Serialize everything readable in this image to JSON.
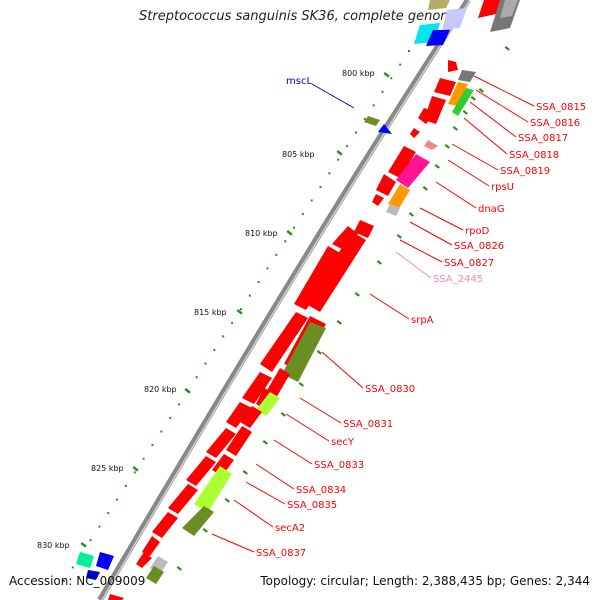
{
  "title": "Streptococcus sanguinis SK36, complete genome",
  "accession": "Accession: NC_009009",
  "summary": "Topology: circular; Length: 2,388,435 bp; Genes: 2,344",
  "colors": {
    "red": "#ff0000",
    "olive": "#6b8e23",
    "lime": "#adff2f",
    "orange": "#ff9900",
    "magenta": "#ff1493",
    "gray": "#999999",
    "blue": "#0000ff",
    "cyan": "#00e5ee",
    "navy_label": "#0000cc",
    "pink_label": "#ee88bb",
    "tick_green": "#2e8b22"
  },
  "scale_labels": [
    "800 kbp",
    "805 kbp",
    "810 kbp",
    "815 kbp",
    "820 kbp",
    "825 kbp",
    "830 kbp"
  ],
  "gene_labels": [
    {
      "text": "mscL",
      "color": "navy"
    },
    {
      "text": "SSA_0815",
      "color": "red"
    },
    {
      "text": "SSA_0816",
      "color": "red"
    },
    {
      "text": "SSA_0817",
      "color": "red"
    },
    {
      "text": "SSA_0818",
      "color": "red"
    },
    {
      "text": "SSA_0819",
      "color": "red"
    },
    {
      "text": "rpsU",
      "color": "red"
    },
    {
      "text": "dnaG",
      "color": "red"
    },
    {
      "text": "rpoD",
      "color": "red"
    },
    {
      "text": "SSA_0826",
      "color": "red"
    },
    {
      "text": "SSA_0827",
      "color": "red"
    },
    {
      "text": "SSA_2445",
      "color": "pink"
    },
    {
      "text": "srpA",
      "color": "red"
    },
    {
      "text": "SSA_0830",
      "color": "red"
    },
    {
      "text": "SSA_0831",
      "color": "red"
    },
    {
      "text": "secY",
      "color": "red"
    },
    {
      "text": "SSA_0833",
      "color": "red"
    },
    {
      "text": "SSA_0834",
      "color": "red"
    },
    {
      "text": "SSA_0835",
      "color": "red"
    },
    {
      "text": "secA2",
      "color": "red"
    },
    {
      "text": "SSA_0837",
      "color": "red"
    }
  ]
}
